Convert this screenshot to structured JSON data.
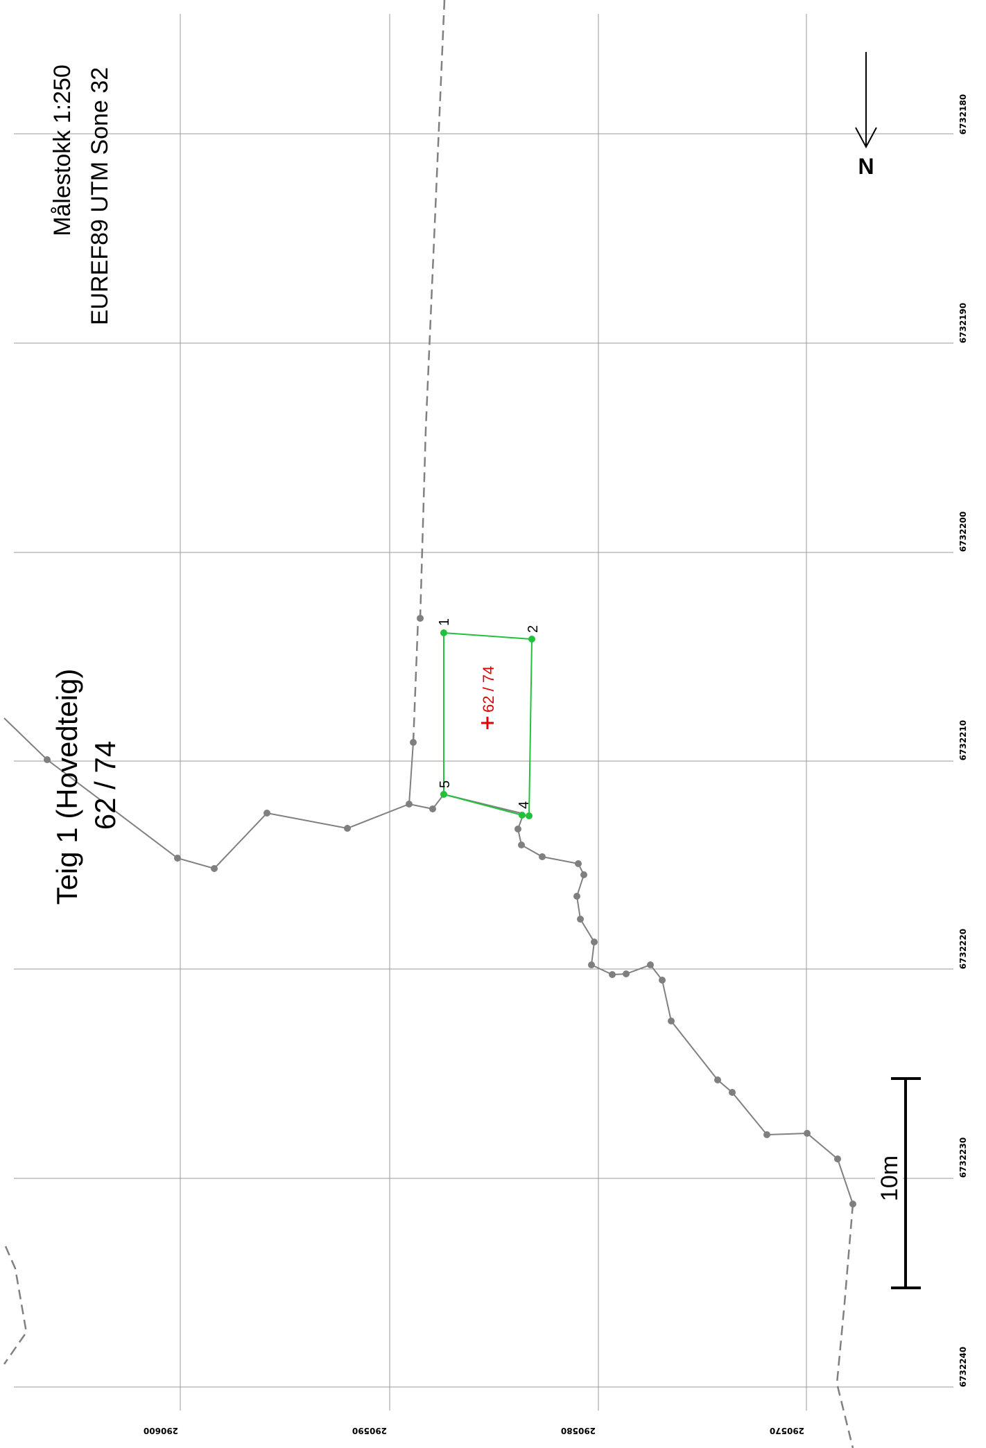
{
  "map": {
    "scale_text": "Målestokk 1:250",
    "crs_text": "EUREF89 UTM Sone 32",
    "parcel_title": "Teig 1 (Hovedteig)",
    "parcel_id": "62 / 74",
    "parcel_label": "62 / 74",
    "north_label": "N",
    "scalebar_label": "10m",
    "right_ticks": [
      "6732180",
      "6732190",
      "6732200",
      "6732210",
      "6732220",
      "6732230",
      "6732240"
    ],
    "bottom_ticks": [
      "290600",
      "290590",
      "290580",
      "290570"
    ],
    "point_labels": [
      "1",
      "2",
      "4",
      "5"
    ],
    "colors": {
      "grid": "#9a9a9a",
      "boundary": "#808080",
      "parcel": "#22c03c",
      "label_red": "#e10000",
      "text": "#000000"
    }
  }
}
